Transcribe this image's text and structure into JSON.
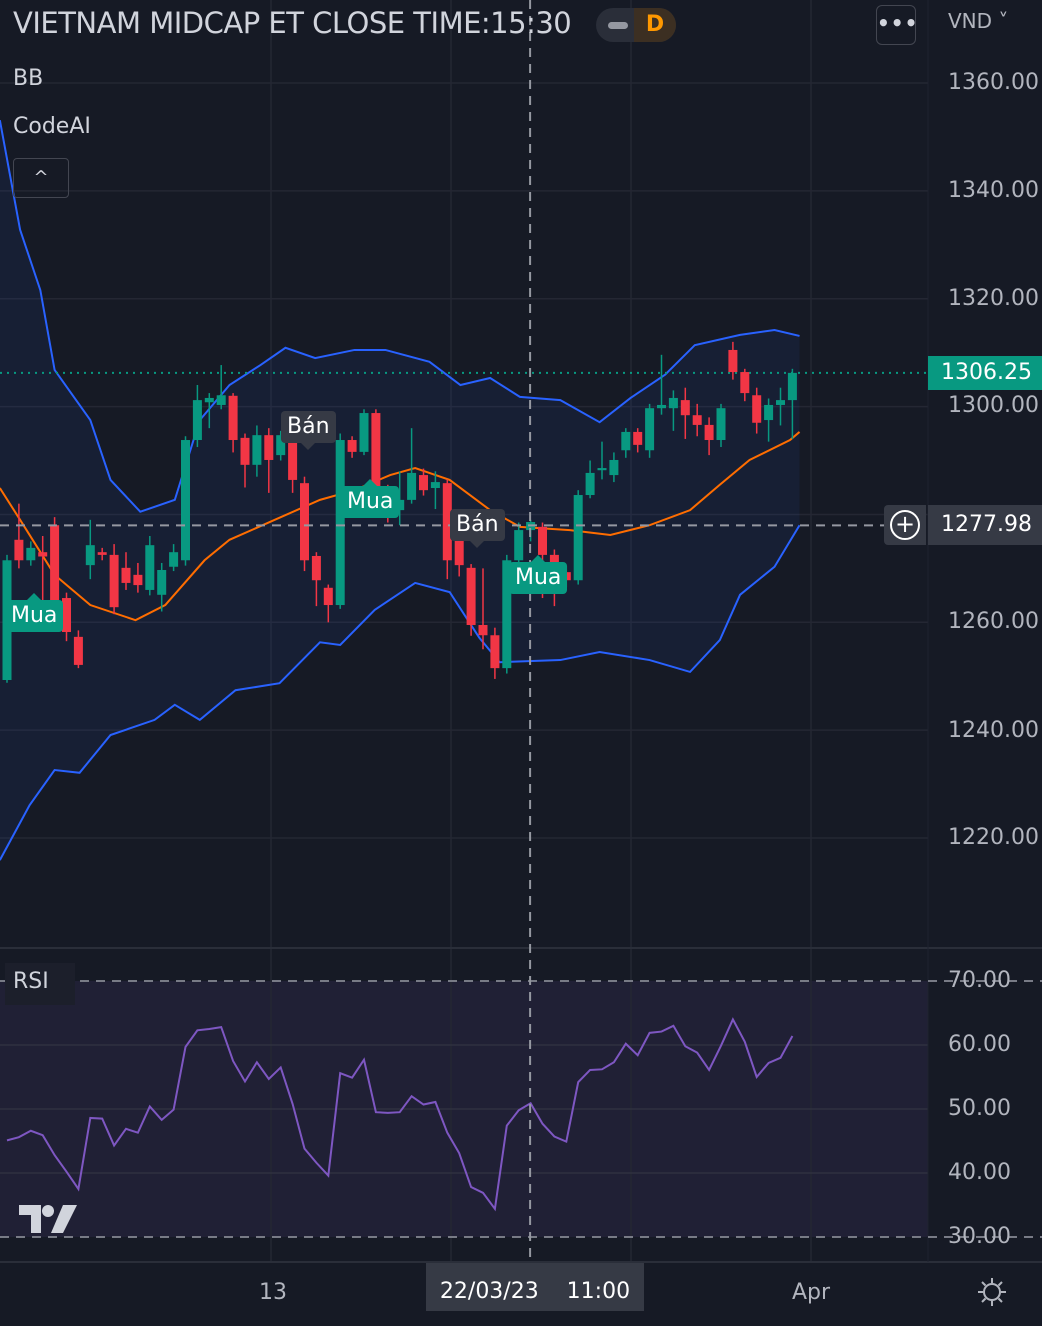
{
  "header": {
    "title": "VIETNAM MIDCAP ET CLOSE TIME:15:30",
    "market_status": "D",
    "more_label": "•••",
    "currency": "VND ˅"
  },
  "legend": {
    "indicator_1": "BB",
    "indicator_2": "CodeAI",
    "collapse_icon": "chevron-up-icon",
    "collapse_label": "^"
  },
  "price_axis": {
    "ticks": [
      "1360.00",
      "1340.00",
      "1320.00",
      "1300.00",
      "1260.00",
      "1240.00",
      "1220.00"
    ],
    "last_price": "1306.25",
    "crosshair_price": "1277.98",
    "plus_icon": "⊕",
    "plus_label": "+"
  },
  "rsi_pane": {
    "label": "RSI",
    "ticks": [
      "70.00",
      "60.00",
      "50.00",
      "40.00",
      "30.00"
    ]
  },
  "time_axis": {
    "ticks": [
      "13",
      "Apr"
    ],
    "crosshair_time": "22/03/23    11:00"
  },
  "signals": [
    {
      "label": "Mua",
      "type": "buy"
    },
    {
      "label": "Bán",
      "type": "sell"
    },
    {
      "label": "Mua",
      "type": "buy"
    },
    {
      "label": "Bán",
      "type": "sell"
    },
    {
      "label": "Mua",
      "type": "buy"
    }
  ],
  "colors": {
    "up": "#089981",
    "down": "#f23645",
    "bb_band": "#2962ff",
    "bb_basis": "#ff6d00",
    "rsi": "#7e57c2",
    "grid": "#242733",
    "background": "#161a25"
  },
  "chart_data": {
    "type": "candlestick",
    "title": "VIETNAM MIDCAP ET CLOSE TIME:15:30",
    "ylim": [
      1205,
      1368
    ],
    "candles_ohlc": [
      [
        1249.3,
        1272.5,
        1248.8,
        1271.5
      ],
      [
        1275.3,
        1282.0,
        1270.0,
        1271.5
      ],
      [
        1271.5,
        1275.0,
        1270.5,
        1273.8
      ],
      [
        1273.0,
        1276.0,
        1264.0,
        1272.2
      ],
      [
        1278.0,
        1279.5,
        1262.0,
        1263.2
      ],
      [
        1264.5,
        1265.5,
        1256.5,
        1258.2
      ],
      [
        1257.3,
        1258.5,
        1251.5,
        1252.1
      ],
      [
        1270.6,
        1279.0,
        1268.0,
        1274.3
      ],
      [
        1273.0,
        1273.8,
        1271.5,
        1272.5
      ],
      [
        1272.5,
        1274.5,
        1261.5,
        1262.8
      ],
      [
        1270.1,
        1273.0,
        1266.0,
        1267.3
      ],
      [
        1268.8,
        1271.0,
        1265.5,
        1266.9
      ],
      [
        1266.0,
        1276.0,
        1265.0,
        1274.3
      ],
      [
        1265.1,
        1271.0,
        1262.0,
        1269.7
      ],
      [
        1270.3,
        1274.5,
        1269.5,
        1273.0
      ],
      [
        1271.5,
        1294.5,
        1270.5,
        1293.8
      ],
      [
        1293.8,
        1304.0,
        1292.5,
        1301.2
      ],
      [
        1300.8,
        1302.5,
        1296.0,
        1301.6
      ],
      [
        1300.3,
        1307.7,
        1299.5,
        1302.1
      ],
      [
        1302.0,
        1302.5,
        1291.5,
        1293.8
      ],
      [
        1294.2,
        1295.0,
        1285.0,
        1289.2
      ],
      [
        1289.2,
        1296.5,
        1287.0,
        1294.7
      ],
      [
        1294.7,
        1296.0,
        1284.0,
        1290.1
      ],
      [
        1291.0,
        1295.5,
        1290.0,
        1294.7
      ],
      [
        1294.7,
        1295.5,
        1284.0,
        1286.4
      ],
      [
        1285.8,
        1287.0,
        1269.5,
        1271.5
      ],
      [
        1272.3,
        1273.0,
        1263.0,
        1267.8
      ],
      [
        1266.4,
        1267.0,
        1260.0,
        1263.2
      ],
      [
        1263.2,
        1295.0,
        1262.5,
        1293.8
      ],
      [
        1293.8,
        1294.5,
        1290.5,
        1291.6
      ],
      [
        1291.6,
        1299.5,
        1291.0,
        1298.8
      ],
      [
        1298.8,
        1299.5,
        1280.0,
        1282.7
      ],
      [
        1284.5,
        1285.5,
        1278.5,
        1279.9
      ],
      [
        1280.8,
        1288.0,
        1278.0,
        1282.7
      ],
      [
        1282.7,
        1296.0,
        1282.0,
        1287.7
      ],
      [
        1287.3,
        1288.5,
        1283.5,
        1284.5
      ],
      [
        1284.9,
        1288.0,
        1281.0,
        1286.0
      ],
      [
        1285.8,
        1286.5,
        1268.0,
        1271.5
      ],
      [
        1277.1,
        1278.0,
        1268.5,
        1270.6
      ],
      [
        1270.1,
        1270.8,
        1257.5,
        1259.5
      ],
      [
        1259.5,
        1270.0,
        1255.0,
        1257.6
      ],
      [
        1257.6,
        1259.0,
        1249.5,
        1251.5
      ],
      [
        1251.5,
        1272.5,
        1250.5,
        1271.5
      ],
      [
        1271.5,
        1278.5,
        1270.5,
        1277.1
      ],
      [
        1277.1,
        1279.0,
        1275.0,
        1278.6
      ],
      [
        1277.7,
        1278.5,
        1264.5,
        1272.5
      ],
      [
        1272.5,
        1273.5,
        1263.0,
        1268.8
      ],
      [
        1269.3,
        1270.5,
        1266.5,
        1267.8
      ],
      [
        1267.8,
        1284.5,
        1267.0,
        1283.6
      ],
      [
        1283.6,
        1290.0,
        1283.0,
        1287.7
      ],
      [
        1288.2,
        1293.5,
        1286.5,
        1288.6
      ],
      [
        1287.3,
        1291.5,
        1286.0,
        1290.1
      ],
      [
        1291.9,
        1296.0,
        1290.5,
        1295.3
      ],
      [
        1295.3,
        1296.0,
        1291.5,
        1292.9
      ],
      [
        1291.9,
        1300.5,
        1290.5,
        1299.7
      ],
      [
        1299.7,
        1309.6,
        1298.5,
        1300.3
      ],
      [
        1299.7,
        1303.0,
        1295.5,
        1301.6
      ],
      [
        1301.2,
        1303.5,
        1294.0,
        1298.4
      ],
      [
        1298.4,
        1300.5,
        1294.5,
        1296.6
      ],
      [
        1296.6,
        1298.0,
        1291.0,
        1293.8
      ],
      [
        1293.8,
        1300.5,
        1292.5,
        1299.7
      ],
      [
        1310.5,
        1312.0,
        1305.0,
        1306.4
      ],
      [
        1306.4,
        1307.0,
        1301.0,
        1302.5
      ],
      [
        1302.1,
        1303.5,
        1295.0,
        1297.0
      ],
      [
        1297.5,
        1301.5,
        1293.5,
        1300.3
      ],
      [
        1300.3,
        1303.5,
        1296.5,
        1301.2
      ],
      [
        1301.2,
        1307.0,
        1294.0,
        1306.25
      ]
    ],
    "bb_upper": [
      [
        -0.6,
        1353.1
      ],
      [
        1.1,
        1332.8
      ],
      [
        2.8,
        1321.6
      ],
      [
        4.0,
        1306.8
      ],
      [
        7.0,
        1297.5
      ],
      [
        8.7,
        1286.4
      ],
      [
        11.2,
        1280.5
      ],
      [
        14.1,
        1282.7
      ],
      [
        16.2,
        1297.5
      ],
      [
        18.7,
        1304.0
      ],
      [
        21.3,
        1307.7
      ],
      [
        23.4,
        1310.9
      ],
      [
        25.9,
        1309.0
      ],
      [
        29.2,
        1310.5
      ],
      [
        31.8,
        1310.5
      ],
      [
        35.5,
        1308.3
      ],
      [
        38.1,
        1304.0
      ],
      [
        40.6,
        1305.3
      ],
      [
        43.1,
        1301.8
      ],
      [
        46.5,
        1301.2
      ],
      [
        49.8,
        1297.1
      ],
      [
        52.4,
        1301.6
      ],
      [
        55.3,
        1305.9
      ],
      [
        57.8,
        1311.4
      ],
      [
        61.6,
        1313.3
      ],
      [
        64.5,
        1314.2
      ],
      [
        66.6,
        1313.1
      ]
    ],
    "bb_basis": [
      [
        -0.6,
        1284.9
      ],
      [
        1.1,
        1279.0
      ],
      [
        4.0,
        1268.8
      ],
      [
        7.0,
        1263.2
      ],
      [
        10.8,
        1260.4
      ],
      [
        13.3,
        1263.2
      ],
      [
        16.6,
        1271.5
      ],
      [
        18.7,
        1275.3
      ],
      [
        22.5,
        1279.0
      ],
      [
        26.3,
        1282.7
      ],
      [
        29.2,
        1284.5
      ],
      [
        32.2,
        1287.3
      ],
      [
        34.3,
        1288.6
      ],
      [
        37.2,
        1286.4
      ],
      [
        40.6,
        1280.8
      ],
      [
        43.1,
        1277.7
      ],
      [
        47.3,
        1277.1
      ],
      [
        50.7,
        1276.2
      ],
      [
        54.0,
        1278.0
      ],
      [
        57.4,
        1280.8
      ],
      [
        59.9,
        1285.5
      ],
      [
        62.4,
        1290.1
      ],
      [
        65.8,
        1293.8
      ],
      [
        66.6,
        1295.3
      ]
    ],
    "bb_lower": [
      [
        -0.6,
        1215.9
      ],
      [
        1.9,
        1226.1
      ],
      [
        4.0,
        1232.6
      ],
      [
        6.1,
        1232.1
      ],
      [
        8.7,
        1239.1
      ],
      [
        12.4,
        1241.9
      ],
      [
        14.1,
        1244.7
      ],
      [
        16.2,
        1241.9
      ],
      [
        19.2,
        1247.4
      ],
      [
        22.9,
        1248.7
      ],
      [
        26.3,
        1256.3
      ],
      [
        28.0,
        1255.8
      ],
      [
        30.9,
        1262.3
      ],
      [
        34.3,
        1267.3
      ],
      [
        37.2,
        1265.6
      ],
      [
        39.7,
        1257.1
      ],
      [
        41.4,
        1252.6
      ],
      [
        46.5,
        1253.0
      ],
      [
        49.8,
        1254.5
      ],
      [
        54.0,
        1253.0
      ],
      [
        57.4,
        1250.8
      ],
      [
        59.9,
        1256.7
      ],
      [
        61.6,
        1265.1
      ],
      [
        64.5,
        1270.3
      ],
      [
        66.6,
        1278.0
      ]
    ],
    "rsi": [
      45.1,
      45.6,
      46.6,
      45.9,
      42.8,
      40.2,
      37.5,
      48.6,
      48.5,
      44.3,
      46.9,
      46.3,
      50.4,
      48.3,
      49.9,
      59.7,
      62.3,
      62.5,
      62.8,
      57.5,
      54.3,
      57.3,
      54.7,
      56.5,
      50.8,
      43.8,
      41.6,
      39.6,
      55.6,
      54.9,
      57.7,
      49.5,
      49.4,
      49.5,
      52.0,
      50.7,
      51.1,
      46.3,
      43.1,
      37.8,
      36.9,
      34.4,
      47.4,
      49.8,
      50.9,
      47.7,
      45.7,
      44.9,
      54.2,
      56.1,
      56.2,
      57.3,
      60.2,
      58.4,
      61.9,
      62.1,
      63.0,
      59.8,
      58.8,
      56.1,
      59.9,
      64.0,
      60.5,
      55.0,
      57.2,
      58.0,
      61.4
    ],
    "rsi_ylim": [
      30,
      70
    ],
    "rsi_bands": [
      70,
      30
    ],
    "price_grid": [
      1360,
      1340,
      1320,
      1300,
      1280,
      1260,
      1240,
      1220
    ],
    "last_price": 1306.25,
    "crosshair": {
      "price": 1277.98,
      "bar_index": 44
    }
  }
}
